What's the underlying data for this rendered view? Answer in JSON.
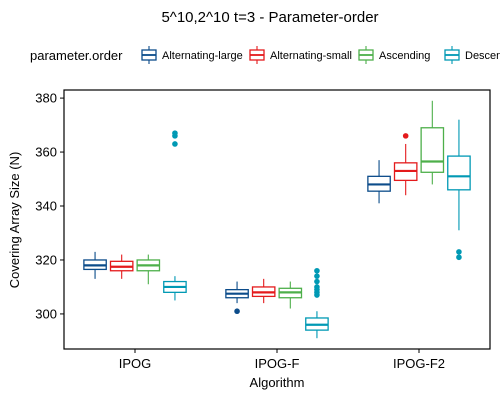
{
  "chart_data": {
    "type": "box",
    "title": "5^10,2^10 t=3 - Parameter-order",
    "xlabel": "Algorithm",
    "ylabel": "Covering Array Size (N)",
    "ylim": [
      287,
      383
    ],
    "yticks": [
      300,
      320,
      340,
      360,
      380
    ],
    "grid": false,
    "legend": {
      "title": "parameter.order",
      "position": "top"
    },
    "categories": [
      "IPOG",
      "IPOG-F",
      "IPOG-F2"
    ],
    "series": [
      {
        "name": "Alternating-large",
        "color": "#0c4c8a",
        "boxes": [
          {
            "category": "IPOG",
            "min": 313,
            "q1": 316.5,
            "median": 318,
            "q3": 320,
            "max": 323,
            "outliers": []
          },
          {
            "category": "IPOG-F",
            "min": 304,
            "q1": 306,
            "median": 307.5,
            "q3": 309,
            "max": 312,
            "outliers": [
              301
            ]
          },
          {
            "category": "IPOG-F2",
            "min": 341,
            "q1": 345.5,
            "median": 348,
            "q3": 351,
            "max": 357,
            "outliers": []
          }
        ]
      },
      {
        "name": "Alternating-small",
        "color": "#e41a1c",
        "boxes": [
          {
            "category": "IPOG",
            "min": 313,
            "q1": 316,
            "median": 317.5,
            "q3": 319.5,
            "max": 322,
            "outliers": []
          },
          {
            "category": "IPOG-F",
            "min": 304,
            "q1": 306.5,
            "median": 308,
            "q3": 310,
            "max": 313,
            "outliers": []
          },
          {
            "category": "IPOG-F2",
            "min": 344,
            "q1": 349.5,
            "median": 353,
            "q3": 356,
            "max": 363,
            "outliers": [
              366
            ]
          }
        ]
      },
      {
        "name": "Ascending",
        "color": "#4daf4a",
        "boxes": [
          {
            "category": "IPOG",
            "min": 311,
            "q1": 316,
            "median": 318,
            "q3": 320,
            "max": 322,
            "outliers": []
          },
          {
            "category": "IPOG-F",
            "min": 302,
            "q1": 306,
            "median": 308,
            "q3": 309.5,
            "max": 312,
            "outliers": []
          },
          {
            "category": "IPOG-F2",
            "min": 348,
            "q1": 352.5,
            "median": 356.5,
            "q3": 369,
            "max": 379,
            "outliers": []
          }
        ]
      },
      {
        "name": "Descending",
        "color": "#0099b4",
        "boxes": [
          {
            "category": "IPOG",
            "min": 305,
            "q1": 308,
            "median": 310,
            "q3": 312,
            "max": 314,
            "outliers": [
              363,
              366,
              367
            ]
          },
          {
            "category": "IPOG-F",
            "min": 291,
            "q1": 294,
            "median": 296,
            "q3": 298.5,
            "max": 301,
            "outliers": [
              307,
              308,
              309,
              310,
              312,
              314,
              316
            ]
          },
          {
            "category": "IPOG-F2",
            "min": 331,
            "q1": 346,
            "median": 351,
            "q3": 358.5,
            "max": 372,
            "outliers": [
              321,
              323
            ]
          }
        ]
      }
    ]
  }
}
